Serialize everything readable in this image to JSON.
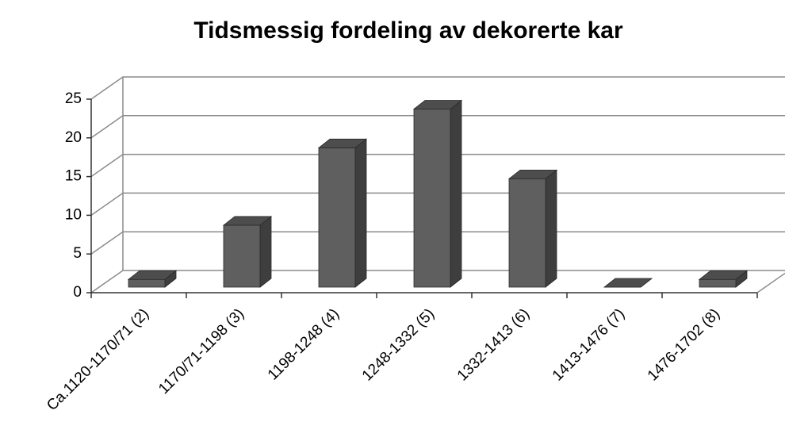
{
  "chart_data": {
    "type": "bar3d",
    "title": "Tidsmessig fordeling av dekorerte kar",
    "categories": [
      "Ca.1120-1170/71 (2)",
      "1170/71-1198 (3)",
      "1198-1248 (4)",
      "1248-1332 (5)",
      "1332-1413 (6)",
      "1413-1476 (7)",
      "1476-1702 (8)"
    ],
    "values": [
      1,
      8,
      18,
      23,
      14,
      0,
      1
    ],
    "color": "#5f5f5f",
    "ylim": [
      0,
      25
    ],
    "yticks": [
      0,
      5,
      10,
      15,
      20,
      25
    ],
    "grid": true
  }
}
